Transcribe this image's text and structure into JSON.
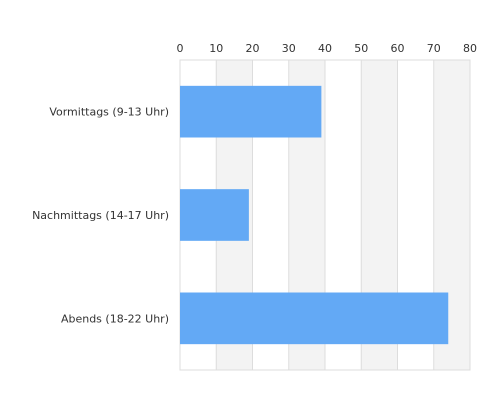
{
  "chart_data": {
    "type": "bar",
    "orientation": "horizontal",
    "categories": [
      "Vormittags (9-13 Uhr)",
      "Nachmittags (14-17 Uhr)",
      "Abends (18-22 Uhr)"
    ],
    "values": [
      39,
      19,
      74
    ],
    "title": "",
    "xlabel": "",
    "ylabel": "",
    "xlim": [
      0,
      80
    ],
    "x_ticks": [
      "0",
      "10",
      "20",
      "30",
      "40",
      "50",
      "60",
      "70",
      "80"
    ],
    "axis_position": "top",
    "grid": true,
    "grid_style": "alternating bands",
    "legend": false,
    "colors": {
      "bar": "#63a9f5",
      "band": "#f3f3f3",
      "grid": "#dddddd",
      "text": "#333333"
    }
  }
}
